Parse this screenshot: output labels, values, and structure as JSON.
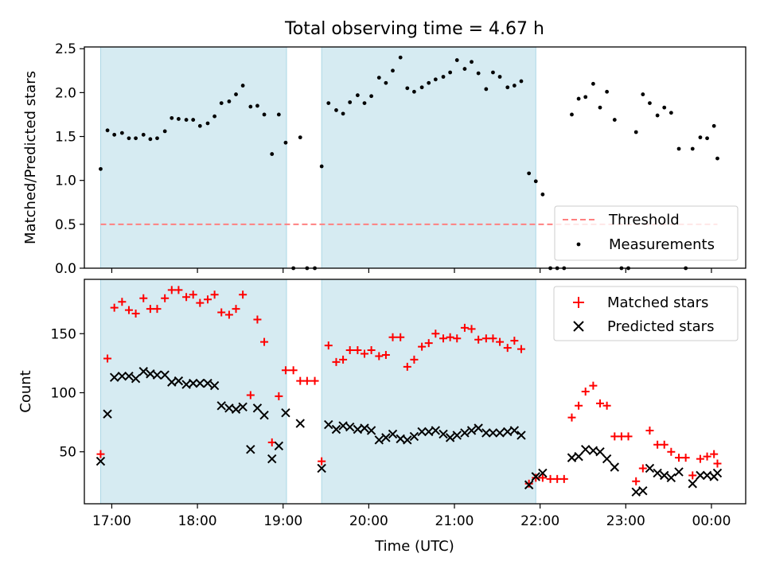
{
  "figure": {
    "title": "Total observing time = 4.67 h",
    "xlabel": "Time (UTC)"
  },
  "colors": {
    "shade": "#add8e6",
    "threshold": "#ff8080",
    "measurement": "#000000",
    "matched": "#ff0000",
    "predicted": "#000000"
  },
  "chart_data": [
    {
      "type": "scatter",
      "ylabel": "Matched/Predicted stars",
      "xlim": [
        16.68,
        24.4
      ],
      "ylim": [
        0,
        2.52
      ],
      "x_ticks": [
        {
          "v": 17,
          "label": "17:00"
        },
        {
          "v": 18,
          "label": "18:00"
        },
        {
          "v": 19,
          "label": "19:00"
        },
        {
          "v": 20,
          "label": "20:00"
        },
        {
          "v": 21,
          "label": "21:00"
        },
        {
          "v": 22,
          "label": "22:00"
        },
        {
          "v": 23,
          "label": "23:00"
        },
        {
          "v": 24,
          "label": "00:00"
        }
      ],
      "y_ticks": [
        0,
        0.5,
        1.0,
        1.5,
        2.0,
        2.5
      ],
      "y_tick_labels": [
        "0.0",
        "0.5",
        "1.0",
        "1.5",
        "2.0",
        "2.5"
      ],
      "shaded_intervals": [
        [
          16.87,
          19.04
        ],
        [
          19.45,
          21.95
        ]
      ],
      "threshold": {
        "name": "Threshold",
        "y": 0.5,
        "x_range": [
          16.87,
          24.07
        ]
      },
      "series": [
        {
          "name": "Measurements",
          "points": [
            [
              16.87,
              1.13
            ],
            [
              16.95,
              1.57
            ],
            [
              17.03,
              1.52
            ],
            [
              17.12,
              1.54
            ],
            [
              17.2,
              1.48
            ],
            [
              17.28,
              1.48
            ],
            [
              17.37,
              1.52
            ],
            [
              17.45,
              1.47
            ],
            [
              17.53,
              1.48
            ],
            [
              17.62,
              1.56
            ],
            [
              17.7,
              1.71
            ],
            [
              17.78,
              1.7
            ],
            [
              17.87,
              1.69
            ],
            [
              17.95,
              1.69
            ],
            [
              18.03,
              1.62
            ],
            [
              18.12,
              1.65
            ],
            [
              18.2,
              1.73
            ],
            [
              18.28,
              1.88
            ],
            [
              18.37,
              1.9
            ],
            [
              18.45,
              1.98
            ],
            [
              18.53,
              2.08
            ],
            [
              18.62,
              1.84
            ],
            [
              18.7,
              1.85
            ],
            [
              18.78,
              1.75
            ],
            [
              18.87,
              1.3
            ],
            [
              18.95,
              1.75
            ],
            [
              19.03,
              1.43
            ],
            [
              19.12,
              0.0
            ],
            [
              19.2,
              1.49
            ],
            [
              19.28,
              0.0
            ],
            [
              19.37,
              0.0
            ],
            [
              19.45,
              1.16
            ],
            [
              19.53,
              1.88
            ],
            [
              19.62,
              1.8
            ],
            [
              19.7,
              1.76
            ],
            [
              19.78,
              1.89
            ],
            [
              19.87,
              1.97
            ],
            [
              19.95,
              1.88
            ],
            [
              20.03,
              1.96
            ],
            [
              20.12,
              2.17
            ],
            [
              20.2,
              2.11
            ],
            [
              20.28,
              2.25
            ],
            [
              20.37,
              2.4
            ],
            [
              20.45,
              2.05
            ],
            [
              20.53,
              2.01
            ],
            [
              20.62,
              2.06
            ],
            [
              20.7,
              2.11
            ],
            [
              20.78,
              2.15
            ],
            [
              20.87,
              2.18
            ],
            [
              20.95,
              2.23
            ],
            [
              21.03,
              2.37
            ],
            [
              21.12,
              2.27
            ],
            [
              21.2,
              2.35
            ],
            [
              21.28,
              2.22
            ],
            [
              21.37,
              2.04
            ],
            [
              21.45,
              2.23
            ],
            [
              21.53,
              2.18
            ],
            [
              21.62,
              2.06
            ],
            [
              21.7,
              2.08
            ],
            [
              21.78,
              2.13
            ],
            [
              21.87,
              1.08
            ],
            [
              21.95,
              0.99
            ],
            [
              22.03,
              0.84
            ],
            [
              22.12,
              0.0
            ],
            [
              22.2,
              0.0
            ],
            [
              22.28,
              0.0
            ],
            [
              22.37,
              1.75
            ],
            [
              22.45,
              1.93
            ],
            [
              22.53,
              1.95
            ],
            [
              22.62,
              2.1
            ],
            [
              22.7,
              1.83
            ],
            [
              22.78,
              2.01
            ],
            [
              22.87,
              1.69
            ],
            [
              22.95,
              0.0
            ],
            [
              23.03,
              0.0
            ],
            [
              23.12,
              1.55
            ],
            [
              23.2,
              1.98
            ],
            [
              23.28,
              1.88
            ],
            [
              23.37,
              1.74
            ],
            [
              23.45,
              1.83
            ],
            [
              23.53,
              1.77
            ],
            [
              23.62,
              1.36
            ],
            [
              23.7,
              0.0
            ],
            [
              23.78,
              1.36
            ],
            [
              23.87,
              1.49
            ],
            [
              23.95,
              1.48
            ],
            [
              24.03,
              1.62
            ],
            [
              24.07,
              1.25
            ]
          ]
        }
      ],
      "legend": {
        "placement": "lower-right",
        "entries": [
          "Threshold",
          "Measurements"
        ]
      }
    },
    {
      "type": "scatter",
      "ylabel": "Count",
      "xlabel": "Time (UTC)",
      "xlim": [
        16.68,
        24.4
      ],
      "ylim": [
        6,
        196
      ],
      "y_ticks": [
        50,
        100,
        150
      ],
      "shaded_intervals": [
        [
          16.87,
          19.04
        ],
        [
          19.45,
          21.95
        ]
      ],
      "series": [
        {
          "name": "Matched stars",
          "marker": "plus",
          "points": [
            [
              16.87,
              48
            ],
            [
              16.95,
              129
            ],
            [
              17.03,
              172
            ],
            [
              17.12,
              177
            ],
            [
              17.2,
              170
            ],
            [
              17.28,
              167
            ],
            [
              17.37,
              180
            ],
            [
              17.45,
              171
            ],
            [
              17.53,
              171
            ],
            [
              17.62,
              180
            ],
            [
              17.7,
              187
            ],
            [
              17.78,
              187
            ],
            [
              17.87,
              181
            ],
            [
              17.95,
              183
            ],
            [
              18.03,
              176
            ],
            [
              18.12,
              179
            ],
            [
              18.2,
              183
            ],
            [
              18.28,
              168
            ],
            [
              18.37,
              166
            ],
            [
              18.45,
              171
            ],
            [
              18.53,
              183
            ],
            [
              18.62,
              98
            ],
            [
              18.7,
              162
            ],
            [
              18.78,
              143
            ],
            [
              18.87,
              58
            ],
            [
              18.95,
              97
            ],
            [
              19.03,
              119
            ],
            [
              19.12,
              119
            ],
            [
              19.2,
              110
            ],
            [
              19.28,
              110
            ],
            [
              19.37,
              110
            ],
            [
              19.45,
              42
            ],
            [
              19.53,
              140
            ],
            [
              19.62,
              126
            ],
            [
              19.7,
              128
            ],
            [
              19.78,
              136
            ],
            [
              19.87,
              136
            ],
            [
              19.95,
              133
            ],
            [
              20.03,
              136
            ],
            [
              20.12,
              131
            ],
            [
              20.2,
              132
            ],
            [
              20.28,
              147
            ],
            [
              20.37,
              147
            ],
            [
              20.45,
              122
            ],
            [
              20.53,
              128
            ],
            [
              20.62,
              139
            ],
            [
              20.7,
              142
            ],
            [
              20.78,
              150
            ],
            [
              20.87,
              146
            ],
            [
              20.95,
              147
            ],
            [
              21.03,
              146
            ],
            [
              21.12,
              155
            ],
            [
              21.2,
              154
            ],
            [
              21.28,
              145
            ],
            [
              21.37,
              146
            ],
            [
              21.45,
              146
            ],
            [
              21.53,
              143
            ],
            [
              21.62,
              138
            ],
            [
              21.7,
              144
            ],
            [
              21.78,
              137
            ],
            [
              21.87,
              23
            ],
            [
              21.95,
              28
            ],
            [
              22.03,
              28
            ],
            [
              22.12,
              27
            ],
            [
              22.2,
              27
            ],
            [
              22.28,
              27
            ],
            [
              22.37,
              79
            ],
            [
              22.45,
              89
            ],
            [
              22.53,
              101
            ],
            [
              22.62,
              106
            ],
            [
              22.7,
              91
            ],
            [
              22.78,
              89
            ],
            [
              22.87,
              63
            ],
            [
              22.95,
              63
            ],
            [
              23.03,
              63
            ],
            [
              23.12,
              25
            ],
            [
              23.2,
              36
            ],
            [
              23.28,
              68
            ],
            [
              23.37,
              56
            ],
            [
              23.45,
              56
            ],
            [
              23.53,
              50
            ],
            [
              23.62,
              45
            ],
            [
              23.7,
              45
            ],
            [
              23.78,
              30
            ],
            [
              23.87,
              44
            ],
            [
              23.95,
              46
            ],
            [
              24.03,
              48
            ],
            [
              24.07,
              40
            ]
          ]
        },
        {
          "name": "Predicted stars",
          "marker": "x",
          "points": [
            [
              16.87,
              42
            ],
            [
              16.95,
              82
            ],
            [
              17.03,
              113
            ],
            [
              17.12,
              114
            ],
            [
              17.2,
              114
            ],
            [
              17.28,
              112
            ],
            [
              17.37,
              118
            ],
            [
              17.45,
              116
            ],
            [
              17.53,
              115
            ],
            [
              17.62,
              115
            ],
            [
              17.7,
              109
            ],
            [
              17.78,
              110
            ],
            [
              17.87,
              107
            ],
            [
              17.95,
              108
            ],
            [
              18.03,
              108
            ],
            [
              18.12,
              108
            ],
            [
              18.2,
              106
            ],
            [
              18.28,
              89
            ],
            [
              18.37,
              87
            ],
            [
              18.45,
              86
            ],
            [
              18.53,
              88
            ],
            [
              18.62,
              52
            ],
            [
              18.7,
              87
            ],
            [
              18.78,
              81
            ],
            [
              18.87,
              44
            ],
            [
              18.95,
              55
            ],
            [
              19.03,
              83
            ],
            [
              19.2,
              74
            ],
            [
              19.45,
              36
            ],
            [
              19.53,
              73
            ],
            [
              19.62,
              69
            ],
            [
              19.7,
              72
            ],
            [
              19.78,
              71
            ],
            [
              19.87,
              69
            ],
            [
              19.95,
              70
            ],
            [
              20.03,
              68
            ],
            [
              20.12,
              60
            ],
            [
              20.2,
              62
            ],
            [
              20.28,
              65
            ],
            [
              20.37,
              61
            ],
            [
              20.45,
              60
            ],
            [
              20.53,
              63
            ],
            [
              20.62,
              67
            ],
            [
              20.7,
              67
            ],
            [
              20.78,
              68
            ],
            [
              20.87,
              65
            ],
            [
              20.95,
              62
            ],
            [
              21.03,
              64
            ],
            [
              21.12,
              66
            ],
            [
              21.2,
              68
            ],
            [
              21.28,
              70
            ],
            [
              21.37,
              66
            ],
            [
              21.45,
              66
            ],
            [
              21.53,
              66
            ],
            [
              21.62,
              67
            ],
            [
              21.7,
              68
            ],
            [
              21.78,
              64
            ],
            [
              21.87,
              22
            ],
            [
              21.95,
              29
            ],
            [
              22.03,
              32
            ],
            [
              22.37,
              45
            ],
            [
              22.45,
              46
            ],
            [
              22.53,
              52
            ],
            [
              22.62,
              51
            ],
            [
              22.7,
              50
            ],
            [
              22.78,
              44
            ],
            [
              22.87,
              37
            ],
            [
              23.12,
              16
            ],
            [
              23.2,
              17
            ],
            [
              23.28,
              36
            ],
            [
              23.37,
              32
            ],
            [
              23.45,
              30
            ],
            [
              23.53,
              28
            ],
            [
              23.62,
              33
            ],
            [
              23.78,
              23
            ],
            [
              23.87,
              30
            ],
            [
              23.95,
              30
            ],
            [
              24.03,
              29
            ],
            [
              24.07,
              32
            ]
          ]
        }
      ],
      "legend": {
        "placement": "upper-right",
        "entries": [
          "Matched stars",
          "Predicted stars"
        ]
      }
    }
  ]
}
